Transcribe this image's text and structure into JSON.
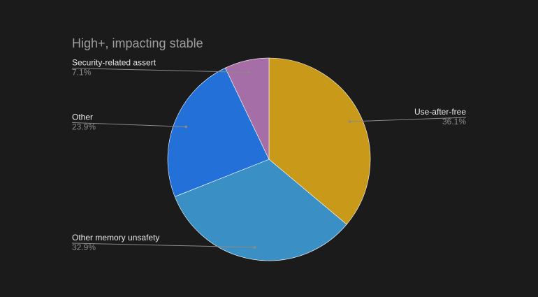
{
  "chart_data": {
    "type": "pie",
    "title": "High+, impacting stable",
    "slices": [
      {
        "label": "Use-after-free",
        "value": 36.1,
        "display": "36.1%",
        "color": "#c99a1a",
        "side": "right"
      },
      {
        "label": "Other memory unsafety",
        "value": 32.9,
        "display": "32.9%",
        "color": "#3a8fc4",
        "side": "left"
      },
      {
        "label": "Other",
        "value": 23.9,
        "display": "23.9%",
        "color": "#2270d8",
        "side": "left"
      },
      {
        "label": "Security-related assert",
        "value": 7.1,
        "display": "7.1%",
        "color": "#a56ea6",
        "side": "left"
      }
    ],
    "legend": "labels beside slices",
    "background": "#1b1b1b"
  }
}
